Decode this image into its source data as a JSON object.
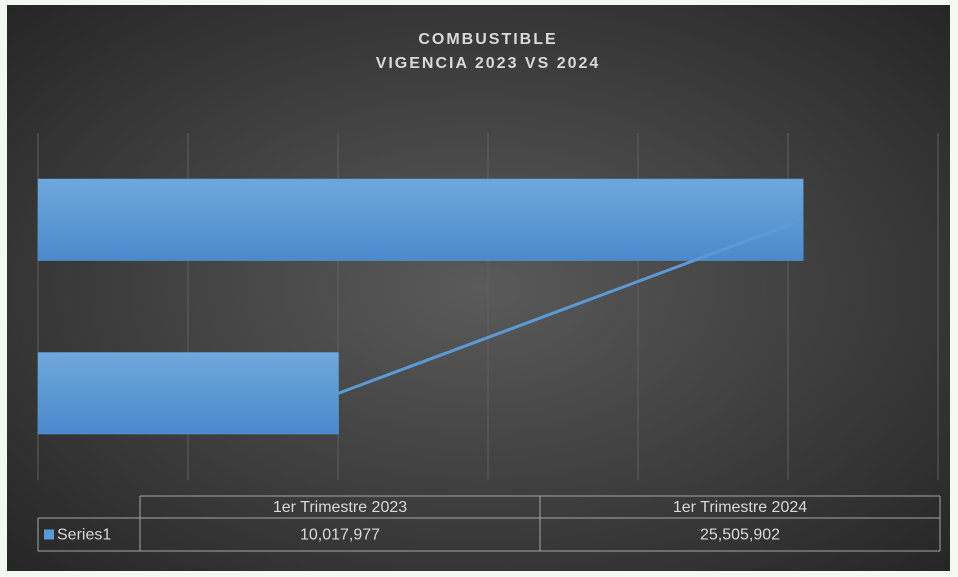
{
  "chart_data": {
    "type": "bar",
    "orientation": "horizontal",
    "title": "COMBUSTIBLE",
    "subtitle": "VIGENCIA 2023 VS 2024",
    "categories": [
      "1er Trimestre 2023",
      "1er Trimestre 2024"
    ],
    "series": [
      {
        "name": "Series1",
        "color": "#5b9bd5",
        "values": [
          10017977,
          25505902
        ],
        "value_labels": [
          "10,017,977",
          "25,505,902"
        ]
      }
    ],
    "line": true,
    "xlim": [
      0,
      30000000
    ],
    "xticks": [
      0,
      5000000,
      10000000,
      15000000,
      20000000,
      25000000,
      30000000
    ],
    "grid": true,
    "data_table": true
  }
}
